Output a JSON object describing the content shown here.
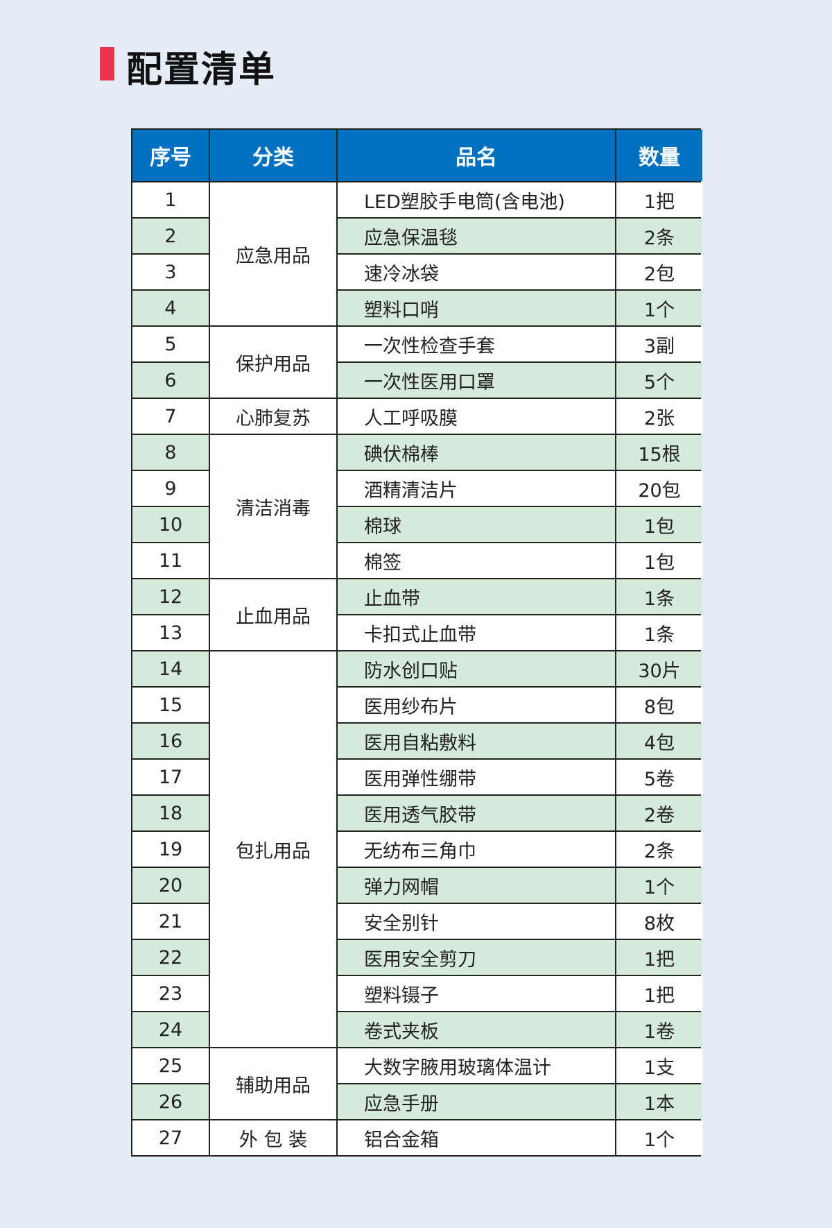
{
  "title": "配置清单",
  "colors": {
    "accent": "#e8334a",
    "header": "#0070c0",
    "stripe": "#d5eadb",
    "background": "#e4edf6"
  },
  "headers": [
    "序号",
    "分类",
    "品名",
    "数量"
  ],
  "categories": [
    {
      "label": "应急用品",
      "rows": 4
    },
    {
      "label": "保护用品",
      "rows": 2
    },
    {
      "label": "心肺复苏",
      "rows": 1
    },
    {
      "label": "清洁消毒",
      "rows": 4
    },
    {
      "label": "止血用品",
      "rows": 2
    },
    {
      "label": "包扎用品",
      "rows": 11
    },
    {
      "label": "辅助用品",
      "rows": 2
    },
    {
      "label": "外 包 装",
      "rows": 1
    }
  ],
  "items": [
    {
      "no": "1",
      "name": "LED塑胶手电筒(含电池)",
      "qty": "1把"
    },
    {
      "no": "2",
      "name": "应急保温毯",
      "qty": "2条"
    },
    {
      "no": "3",
      "name": "速冷冰袋",
      "qty": "2包"
    },
    {
      "no": "4",
      "name": "塑料口哨",
      "qty": "1个"
    },
    {
      "no": "5",
      "name": "一次性检查手套",
      "qty": "3副"
    },
    {
      "no": "6",
      "name": "一次性医用口罩",
      "qty": "5个"
    },
    {
      "no": "7",
      "name": "人工呼吸膜",
      "qty": "2张"
    },
    {
      "no": "8",
      "name": "碘伏棉棒",
      "qty": "15根"
    },
    {
      "no": "9",
      "name": "酒精清洁片",
      "qty": "20包"
    },
    {
      "no": "10",
      "name": "棉球",
      "qty": "1包"
    },
    {
      "no": "11",
      "name": "棉签",
      "qty": "1包"
    },
    {
      "no": "12",
      "name": "止血带",
      "qty": "1条"
    },
    {
      "no": "13",
      "name": "卡扣式止血带",
      "qty": "1条"
    },
    {
      "no": "14",
      "name": "防水创口贴",
      "qty": "30片"
    },
    {
      "no": "15",
      "name": "医用纱布片",
      "qty": "8包"
    },
    {
      "no": "16",
      "name": "医用自粘敷料",
      "qty": "4包"
    },
    {
      "no": "17",
      "name": "医用弹性绷带",
      "qty": "5卷"
    },
    {
      "no": "18",
      "name": "医用透气胶带",
      "qty": "2卷"
    },
    {
      "no": "19",
      "name": "无纺布三角巾",
      "qty": "2条"
    },
    {
      "no": "20",
      "name": "弹力网帽",
      "qty": "1个"
    },
    {
      "no": "21",
      "name": "安全别针",
      "qty": "8枚"
    },
    {
      "no": "22",
      "name": "医用安全剪刀",
      "qty": "1把"
    },
    {
      "no": "23",
      "name": "塑料镊子",
      "qty": "1把"
    },
    {
      "no": "24",
      "name": "卷式夹板",
      "qty": "1卷"
    },
    {
      "no": "25",
      "name": "大数字腋用玻璃体温计",
      "qty": "1支"
    },
    {
      "no": "26",
      "name": "应急手册",
      "qty": "1本"
    },
    {
      "no": "27",
      "name": "铝合金箱",
      "qty": "1个"
    }
  ]
}
